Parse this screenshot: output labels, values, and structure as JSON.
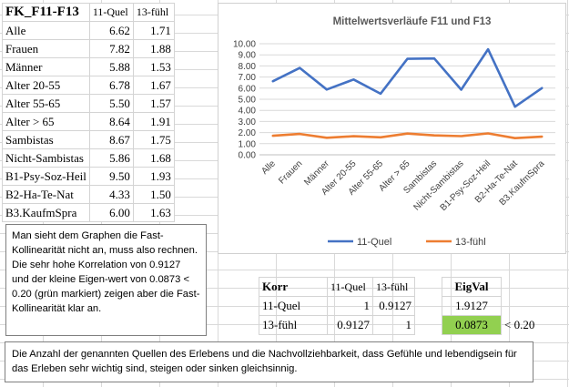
{
  "table": {
    "header": {
      "label": "FK_F11-F13",
      "col1": "11-Quel",
      "col2": "13-fühl"
    },
    "rows": [
      {
        "label": "Alle",
        "v1": "6.62",
        "v2": "1.71"
      },
      {
        "label": "Frauen",
        "v1": "7.82",
        "v2": "1.88"
      },
      {
        "label": "Männer",
        "v1": "5.88",
        "v2": "1.53"
      },
      {
        "label": "Alter 20-55",
        "v1": "6.78",
        "v2": "1.67"
      },
      {
        "label": "Alter 55-65",
        "v1": "5.50",
        "v2": "1.57"
      },
      {
        "label": "Alter > 65",
        "v1": "8.64",
        "v2": "1.91"
      },
      {
        "label": "Sambistas",
        "v1": "8.67",
        "v2": "1.75"
      },
      {
        "label": "Nicht-Sambistas",
        "v1": "5.86",
        "v2": "1.68"
      },
      {
        "label": "B1-Psy-Soz-Heil",
        "v1": "9.50",
        "v2": "1.93"
      },
      {
        "label": "B2-Ha-Te-Nat",
        "v1": "4.33",
        "v2": "1.50"
      },
      {
        "label": "B3.KaufmSpra",
        "v1": "6.00",
        "v2": "1.63"
      }
    ]
  },
  "chart_data": {
    "type": "line",
    "title": "Mittelwertsverläufe F11 und F13",
    "categories": [
      "Alle",
      "Frauen",
      "Männer",
      "Alter 20-55",
      "Alter 55-65",
      "Alter > 65",
      "Sambistas",
      "Nicht-Sambistas",
      "B1-Psy-Soz-Heil",
      "B2-Ha-Te-Nat",
      "B3.KaufmSpra"
    ],
    "series": [
      {
        "name": "11-Quel",
        "color": "#4472c4",
        "values": [
          6.62,
          7.82,
          5.88,
          6.78,
          5.5,
          8.64,
          8.67,
          5.86,
          9.5,
          4.33,
          6.0
        ]
      },
      {
        "name": "13-fühl",
        "color": "#ed7d31",
        "values": [
          1.71,
          1.88,
          1.53,
          1.67,
          1.57,
          1.91,
          1.75,
          1.68,
          1.93,
          1.5,
          1.63
        ]
      }
    ],
    "ylim": [
      0,
      10
    ],
    "yticks": [
      "0.00",
      "1.00",
      "2.00",
      "3.00",
      "4.00",
      "5.00",
      "6.00",
      "7.00",
      "8.00",
      "9.00",
      "10.00"
    ],
    "grid": true,
    "legend": "bottom"
  },
  "note1": {
    "text": "Man sieht dem Graphen die Fast-Kollinearität nicht an, muss also rechnen. Die sehr hohe Korrelation von 0.9127  und der kleine Eigen-wert von 0.0873 < 0.20 (grün markiert) zeigen aber die Fast-Kollinearität klar an."
  },
  "korr": {
    "title": "Korr",
    "col1": "11-Quel",
    "col2": "13-fühl",
    "eig_title": "EigVal",
    "rows": [
      {
        "label": "11-Quel",
        "v1": "1",
        "v2": "0.9127",
        "eig": "1.9127",
        "extra": ""
      },
      {
        "label": "13-fühl",
        "v1": "0.9127",
        "v2": "1",
        "eig": "0.0873",
        "extra": "< 0.20"
      }
    ],
    "highlight_color": "#92d050"
  },
  "note2": {
    "text": "Die Anzahl der genannten Quellen des Erlebens  und die Nachvollziehbarkeit, dass Gefühle und lebendigsein für das Erleben sehr wichtig sind, steigen oder sinken gleichsinnig."
  }
}
